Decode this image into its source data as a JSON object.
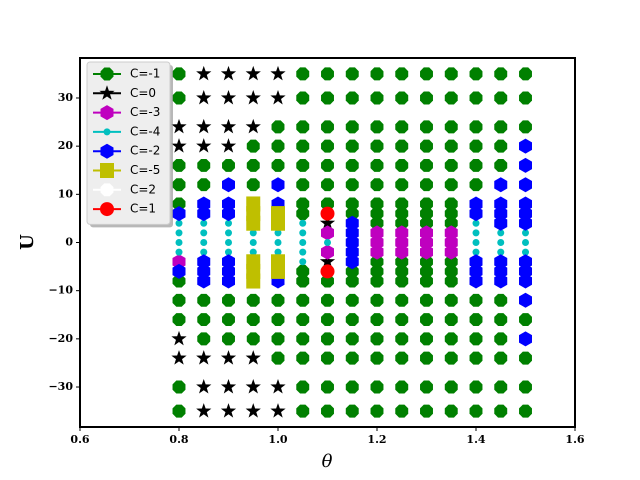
{
  "chart_data": {
    "type": "scatter",
    "xlabel": "θ",
    "ylabel": "U",
    "legend": "upper left",
    "xlim": [
      0.6,
      1.6
    ],
    "ylim": [
      -38.3,
      38.3
    ],
    "xticks": [
      0.6,
      0.8,
      {
        "value": 1,
        "label": "1.0"
      },
      1.2,
      1.4,
      1.6
    ],
    "yticks": [
      {
        "value": -30,
        "label": "−30"
      },
      {
        "value": -20,
        "label": "−20"
      },
      {
        "value": -10,
        "label": "−10"
      },
      0,
      10,
      20,
      30
    ],
    "series": [
      {
        "name": "C=-1",
        "color": "#008000",
        "marker": "octagon",
        "x": [
          0.8,
          1.05,
          1.1,
          1.15,
          1.2,
          1.25,
          1.3,
          1.35,
          1.4,
          1.45,
          1.5,
          0.8,
          1.05,
          1.1,
          1.15,
          1.2,
          1.25,
          1.3,
          1.35,
          1.4,
          1.45,
          1.5,
          1.0,
          1.05,
          1.1,
          1.15,
          1.2,
          1.25,
          1.3,
          1.35,
          1.4,
          1.45,
          1.5,
          0.95,
          1.0,
          1.05,
          1.1,
          1.15,
          1.2,
          1.25,
          1.3,
          1.35,
          1.4,
          1.45,
          0.8,
          0.85,
          0.9,
          0.95,
          1.0,
          1.05,
          1.1,
          1.15,
          1.2,
          1.25,
          1.3,
          1.35,
          1.4,
          1.45,
          0.8,
          0.85,
          0.95,
          1.05,
          1.1,
          1.15,
          1.2,
          1.25,
          1.3,
          1.35,
          1.4,
          0.8,
          1.05,
          1.1,
          1.15,
          1.2,
          1.25,
          1.3,
          1.35,
          1.05,
          1.15,
          1.2,
          1.25,
          1.3,
          1.35,
          1.2,
          1.25,
          1.3,
          1.35,
          1.2,
          1.25,
          1.3,
          1.35,
          1.05,
          1.15,
          1.2,
          1.25,
          1.3,
          1.35,
          0.8,
          1.05,
          1.1,
          1.15,
          1.2,
          1.25,
          1.3,
          1.35,
          0.8,
          0.85,
          0.9,
          0.95,
          1.0,
          1.05,
          1.1,
          1.15,
          1.2,
          1.25,
          1.3,
          1.35,
          1.4,
          1.45,
          0.8,
          0.85,
          0.9,
          0.95,
          1.0,
          1.05,
          1.1,
          1.15,
          1.2,
          1.25,
          1.3,
          1.35,
          1.4,
          1.45,
          1.5,
          0.85,
          0.9,
          0.95,
          1.0,
          1.05,
          1.1,
          1.15,
          1.2,
          1.25,
          1.3,
          1.35,
          1.4,
          1.45,
          1.0,
          1.05,
          1.1,
          1.15,
          1.2,
          1.25,
          1.3,
          1.35,
          1.4,
          1.45,
          1.5,
          0.8,
          1.05,
          1.1,
          1.15,
          1.2,
          1.25,
          1.3,
          1.35,
          1.4,
          1.45,
          1.5,
          0.8,
          1.05,
          1.1,
          1.15,
          1.2,
          1.25,
          1.3,
          1.35,
          1.4,
          1.45,
          1.5
        ],
        "values": [
          35,
          35,
          35,
          35,
          35,
          35,
          35,
          35,
          35,
          35,
          35,
          30,
          30,
          30,
          30,
          30,
          30,
          30,
          30,
          30,
          30,
          30,
          24,
          24,
          24,
          24,
          24,
          24,
          24,
          24,
          24,
          24,
          24,
          20,
          20,
          20,
          20,
          20,
          20,
          20,
          20,
          20,
          20,
          20,
          16,
          16,
          16,
          16,
          16,
          16,
          16,
          16,
          16,
          16,
          16,
          16,
          16,
          16,
          12,
          12,
          12,
          12,
          12,
          12,
          12,
          12,
          12,
          12,
          12,
          8,
          8,
          8,
          8,
          8,
          8,
          8,
          8,
          6,
          6,
          6,
          6,
          6,
          6,
          4,
          4,
          4,
          4,
          -4,
          -4,
          -4,
          -4,
          -6,
          -6,
          -6,
          -6,
          -6,
          -6,
          -8,
          -8,
          -8,
          -8,
          -8,
          -8,
          -8,
          -8,
          -12,
          -12,
          -12,
          -12,
          -12,
          -12,
          -12,
          -12,
          -12,
          -12,
          -12,
          -12,
          -12,
          -12,
          -16,
          -16,
          -16,
          -16,
          -16,
          -16,
          -16,
          -16,
          -16,
          -16,
          -16,
          -16,
          -16,
          -16,
          -16,
          -20,
          -20,
          -20,
          -20,
          -20,
          -20,
          -20,
          -20,
          -20,
          -20,
          -20,
          -20,
          -20,
          -24,
          -24,
          -24,
          -24,
          -24,
          -24,
          -24,
          -24,
          -24,
          -24,
          -24,
          -30,
          -30,
          -30,
          -30,
          -30,
          -30,
          -30,
          -30,
          -30,
          -30,
          -30,
          -35,
          -35,
          -35,
          -35,
          -35,
          -35,
          -35,
          -35,
          -35,
          -35,
          -35
        ]
      },
      {
        "name": "C=0",
        "color": "#000000",
        "marker": "star",
        "x": [
          0.85,
          0.9,
          0.95,
          1.0,
          0.85,
          0.9,
          0.95,
          1.0,
          0.8,
          0.85,
          0.9,
          0.95,
          0.8,
          0.85,
          0.9,
          1.1,
          1.1,
          0.8,
          0.8,
          0.85,
          0.9,
          0.95,
          0.85,
          0.9,
          0.95,
          1.0,
          0.85,
          0.9,
          0.95,
          1.0
        ],
        "values": [
          35,
          35,
          35,
          35,
          30,
          30,
          30,
          30,
          24,
          24,
          24,
          24,
          20,
          20,
          20,
          4,
          -4,
          -20,
          -24,
          -24,
          -24,
          -24,
          -30,
          -30,
          -30,
          -30,
          -35,
          -35,
          -35,
          -35
        ]
      },
      {
        "name": "C=-3",
        "color": "#bf00bf",
        "marker": "hexagon",
        "x": [
          1.1,
          1.2,
          1.25,
          1.3,
          1.35,
          1.2,
          1.25,
          1.3,
          1.35,
          1.1,
          1.2,
          1.25,
          1.3,
          1.35,
          0.8
        ],
        "values": [
          2,
          2,
          2,
          2,
          2,
          0,
          0,
          0,
          0,
          -2,
          -2,
          -2,
          -2,
          -2,
          -4
        ]
      },
      {
        "name": "C=-4",
        "color": "#00bfbf",
        "marker": "dot",
        "x": [
          0.8,
          0.85,
          0.9,
          1.05,
          1.4,
          0.8,
          0.85,
          0.9,
          0.95,
          1.0,
          1.05,
          1.4,
          1.45,
          1.5,
          0.8,
          0.85,
          0.9,
          0.95,
          1.0,
          1.05,
          1.1,
          1.4,
          1.45,
          1.5,
          0.8,
          0.85,
          0.9,
          0.95,
          1.0,
          1.05,
          1.4,
          1.45,
          1.5,
          1.05
        ],
        "values": [
          4,
          4,
          4,
          4,
          4,
          2,
          2,
          2,
          2,
          2,
          2,
          2,
          2,
          2,
          0,
          0,
          0,
          0,
          0,
          0,
          0,
          0,
          0,
          0,
          -2,
          -2,
          -2,
          -2,
          -2,
          -2,
          -2,
          -2,
          -2,
          -4
        ]
      },
      {
        "name": "C=-2",
        "color": "#0000ff",
        "marker": "hexagon",
        "x": [
          1.5,
          1.5,
          0.9,
          1.0,
          1.45,
          1.5,
          0.85,
          0.9,
          1.0,
          1.4,
          1.45,
          1.5,
          0.8,
          0.85,
          0.9,
          1.4,
          1.45,
          1.5,
          1.15,
          1.45,
          1.5,
          1.15,
          1.15,
          1.15,
          0.85,
          0.9,
          1.15,
          1.4,
          1.45,
          1.5,
          0.8,
          0.85,
          0.9,
          1.4,
          1.45,
          1.5,
          0.85,
          0.9,
          1.0,
          1.4,
          1.45,
          1.5,
          1.5,
          1.5
        ],
        "values": [
          20,
          16,
          12,
          12,
          12,
          12,
          8,
          8,
          8,
          8,
          8,
          8,
          6,
          6,
          6,
          6,
          6,
          6,
          4,
          4,
          4,
          2,
          0,
          -2,
          -4,
          -4,
          -4,
          -4,
          -4,
          -4,
          -6,
          -6,
          -6,
          -6,
          -6,
          -6,
          -8,
          -8,
          -8,
          -8,
          -8,
          -8,
          -12,
          -20
        ]
      },
      {
        "name": "C=-5",
        "color": "#bfbf00",
        "marker": "square",
        "x": [
          0.95,
          0.95,
          1.0,
          0.95,
          1.0,
          0.95,
          1.0,
          0.95,
          1.0,
          0.95
        ],
        "values": [
          8,
          6,
          6,
          4,
          4,
          -4,
          -4,
          -6,
          -6,
          -8
        ]
      },
      {
        "name": "C=2",
        "color": "#ffffff",
        "marker": "octagon",
        "x": [],
        "values": []
      },
      {
        "name": "C=1",
        "color": "#ff0000",
        "marker": "circle",
        "x": [
          1.1,
          1.1
        ],
        "values": [
          6,
          -6
        ]
      }
    ]
  }
}
